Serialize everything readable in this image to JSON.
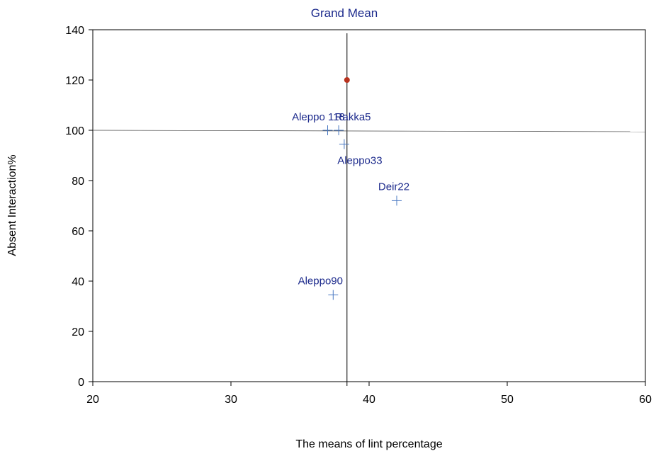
{
  "chart_data": {
    "type": "scatter",
    "title": "Grand Mean",
    "xlabel": "The means of lint percentage",
    "ylabel": "Absent Interaction%",
    "xlim": [
      20,
      60
    ],
    "ylim": [
      0,
      140
    ],
    "xticks": [
      20,
      30,
      40,
      50,
      60
    ],
    "yticks": [
      0,
      20,
      40,
      60,
      80,
      100,
      120,
      140
    ],
    "grid": false,
    "legend": "none",
    "points": [
      {
        "label": "Aleppo 118",
        "x": 37.0,
        "y": 100
      },
      {
        "label": "Rakka5",
        "x": 37.8,
        "y": 100
      },
      {
        "label": "Aleppo33",
        "x": 38.2,
        "y": 94.5
      },
      {
        "label": "Deir22",
        "x": 42.0,
        "y": 72
      },
      {
        "label": "Aleppo90",
        "x": 37.4,
        "y": 34.5
      }
    ],
    "grand_mean": {
      "x": 38.4,
      "y": 120
    },
    "reference_lines": {
      "vertical_x": 38.4,
      "horizontal_y": 100
    }
  },
  "colors": {
    "title": "#1c2a8c",
    "point_label": "#1c2a8c",
    "marker": "#4a78c2",
    "grand_mean_marker": "#b8321e",
    "axis": "#000000",
    "reference_line": "#444444"
  }
}
